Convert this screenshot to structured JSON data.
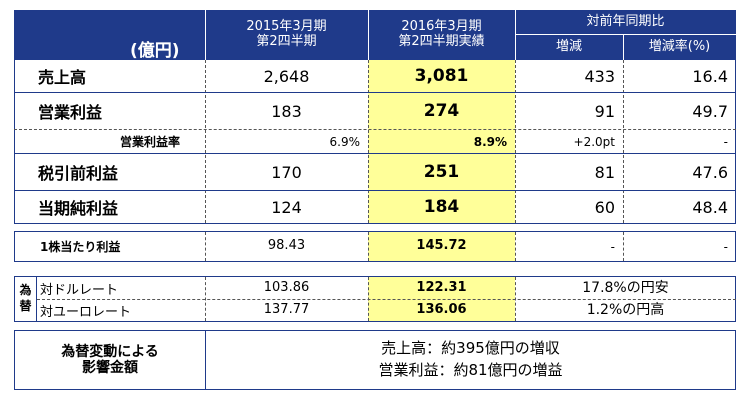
{
  "header": {
    "unit": "(億円)",
    "col_prev_l1": "2015年3月期",
    "col_prev_l2": "第2四半期",
    "col_curr_l1": "2016年3月期",
    "col_curr_l2": "第2四半期実績",
    "col_compare": "対前年同期比",
    "col_change": "増減",
    "col_change_rate": "増減率(%)"
  },
  "main_rows": [
    {
      "label": "売上高",
      "prev": "2,648",
      "curr": "3,081",
      "change": "433",
      "rate": "16.4"
    },
    {
      "label": "営業利益",
      "prev": "183",
      "curr": "274",
      "change": "91",
      "rate": "49.7"
    },
    {
      "label": "営業利益率",
      "prev": "6.9%",
      "curr": "8.9%",
      "change": "+2.0pt",
      "rate": "-"
    },
    {
      "label": "税引前利益",
      "prev": "170",
      "curr": "251",
      "change": "81",
      "rate": "47.6"
    },
    {
      "label": "当期純利益",
      "prev": "124",
      "curr": "184",
      "change": "60",
      "rate": "48.4"
    }
  ],
  "eps": {
    "label": "1株当たり利益",
    "prev": "98.43",
    "curr": "145.72",
    "change": "-",
    "rate": "-"
  },
  "fx": {
    "side_label_1": "為",
    "side_label_2": "替",
    "rows": [
      {
        "label": "対ドルレート",
        "prev": "103.86",
        "curr": "122.31",
        "note": "17.8%の円安"
      },
      {
        "label": "対ユーロレート",
        "prev": "137.77",
        "curr": "136.06",
        "note": "1.2%の円高"
      }
    ]
  },
  "impact": {
    "label_1": "為替変動による",
    "label_2": "影響金額",
    "line_1": "売上高：約395億円の増収",
    "line_2": "営業利益：約81億円の増益"
  }
}
